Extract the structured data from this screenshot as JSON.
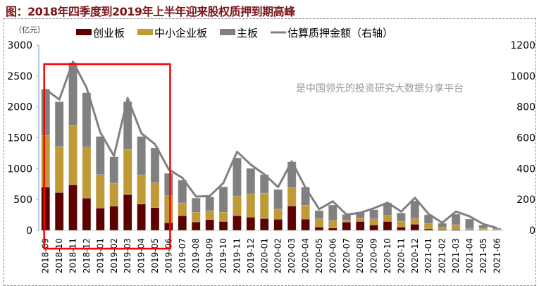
{
  "title": "图：2018年四季度到2019年上半年迎来股权质押到期高峰",
  "watermark": "是中国领先的投资研究大数据分享平台",
  "chart_data": {
    "type": "bar",
    "stacked": true,
    "title": "",
    "ylabel": "（亿元）",
    "ylim": [
      0,
      3000
    ],
    "yticks": [
      "0",
      "500",
      "1000",
      "1500",
      "2000",
      "2500",
      "3000"
    ],
    "y2lim": [
      0,
      1200
    ],
    "y2ticks": [
      "0",
      "200",
      "400",
      "600",
      "800",
      "1000",
      "1200"
    ],
    "grid": false,
    "legend_position": "top",
    "highlight_box": {
      "from": "2018-09",
      "to": "2019-06",
      "color": "#ff0000"
    },
    "categories": [
      "2018-09",
      "2018-10",
      "2018-11",
      "2018-12",
      "2019-01",
      "2019-02",
      "2019-03",
      "2019-04",
      "2019-05",
      "2019-06",
      "2019-07",
      "2019-08",
      "2019-09",
      "2019-10",
      "2019-11",
      "2019-12",
      "2020-01",
      "2020-02",
      "2020-03",
      "2020-04",
      "2020-05",
      "2020-06",
      "2020-07",
      "2020-08",
      "2020-09",
      "2020-10",
      "2020-11",
      "2020-12",
      "2021-01",
      "2021-02",
      "2021-03",
      "2021-04",
      "2021-05",
      "2021-06"
    ],
    "series": [
      {
        "name": "创业板",
        "type": "bar",
        "color": "#5c0000",
        "values": [
          700,
          612,
          737,
          521,
          361,
          391,
          578,
          426,
          369,
          122,
          236,
          137,
          175,
          144,
          236,
          213,
          190,
          179,
          395,
          182,
          53,
          38,
          133,
          144,
          87,
          144,
          53,
          99,
          23,
          15,
          15,
          8,
          4,
          4
        ]
      },
      {
        "name": "中小企业板",
        "type": "bar",
        "color": "#c09a34",
        "values": [
          839,
          745,
          962,
          828,
          543,
          373,
          733,
          471,
          403,
          440,
          209,
          156,
          144,
          149,
          319,
          380,
          414,
          163,
          297,
          225,
          137,
          122,
          34,
          54,
          99,
          99,
          95,
          99,
          91,
          31,
          76,
          19,
          30,
          19
        ]
      },
      {
        "name": "主板",
        "type": "bar",
        "color": "#808080",
        "values": [
          745,
          725,
          1014,
          878,
          616,
          425,
          771,
          623,
          562,
          361,
          368,
          228,
          221,
          410,
          619,
          410,
          297,
          319,
          418,
          292,
          129,
          250,
          88,
          91,
          148,
          198,
          133,
          277,
          137,
          68,
          171,
          155,
          50,
          15
        ]
      },
      {
        "name": "估算质押金额（右轴）",
        "type": "line",
        "axis": "right",
        "color": "#808080",
        "values": [
          914,
          847,
          1093,
          923,
          634,
          482,
          857,
          629,
          558,
          395,
          340,
          219,
          222,
          307,
          509,
          426,
          362,
          280,
          447,
          277,
          137,
          188,
          102,
          114,
          143,
          179,
          122,
          211,
          106,
          49,
          122,
          91,
          41,
          15
        ]
      }
    ]
  }
}
